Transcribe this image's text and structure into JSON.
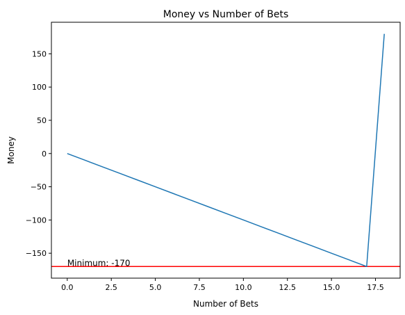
{
  "chart_data": {
    "type": "line",
    "title": "Money vs Number of Bets",
    "xlabel": "Number of Bets",
    "ylabel": "Money",
    "xlim": [
      -0.9,
      18.9
    ],
    "ylim": [
      -187.5,
      197.5
    ],
    "xticks": [
      0,
      2.5,
      5,
      7.5,
      10,
      12.5,
      15,
      17.5
    ],
    "xtick_labels": [
      "0.0",
      "2.5",
      "5.0",
      "7.5",
      "10.0",
      "12.5",
      "15.0",
      "17.5"
    ],
    "yticks": [
      -150,
      -100,
      -50,
      0,
      50,
      100,
      150
    ],
    "ytick_labels": [
      "−150",
      "−100",
      "−50",
      "0",
      "50",
      "100",
      "150"
    ],
    "grid": false,
    "series": [
      {
        "color": "#1f77b4",
        "x": [
          0,
          1,
          2,
          3,
          4,
          5,
          6,
          7,
          8,
          9,
          10,
          11,
          12,
          13,
          14,
          15,
          16,
          17,
          18
        ],
        "y": [
          0,
          -10,
          -20,
          -30,
          -40,
          -50,
          -60,
          -70,
          -80,
          -90,
          -100,
          -110,
          -120,
          -130,
          -140,
          -150,
          -160,
          -170,
          180
        ]
      }
    ],
    "hlines": [
      {
        "y": -170,
        "color": "#ff0000"
      }
    ],
    "annotations": [
      {
        "text": "Minimum: -170",
        "x": 0,
        "y": -170
      }
    ]
  }
}
